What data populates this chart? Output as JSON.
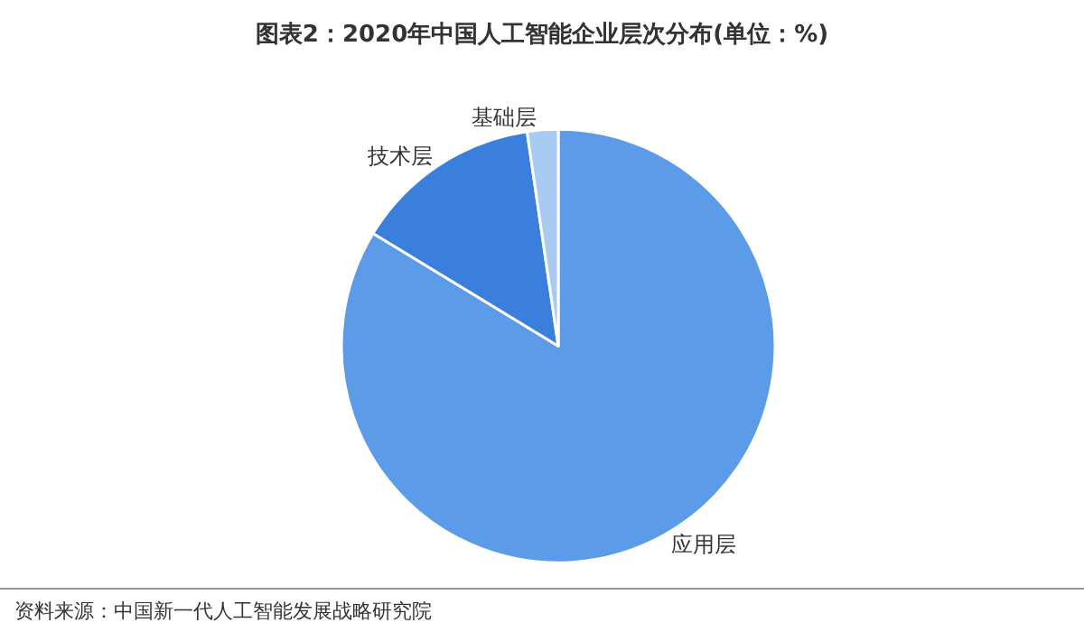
{
  "chart_data": {
    "type": "pie",
    "title": "图表2：2020年中国人工智能企业层次分布(单位：%)",
    "categories": [
      "应用层",
      "技术层",
      "基础层"
    ],
    "values": [
      83.7,
      14.0,
      2.3
    ],
    "colors": [
      "#5b9be8",
      "#3b7fdd",
      "#a8cbf3"
    ],
    "legend": false,
    "annotations": [
      "资料来源：中国新一代人工智能发展战略研究院"
    ]
  }
}
